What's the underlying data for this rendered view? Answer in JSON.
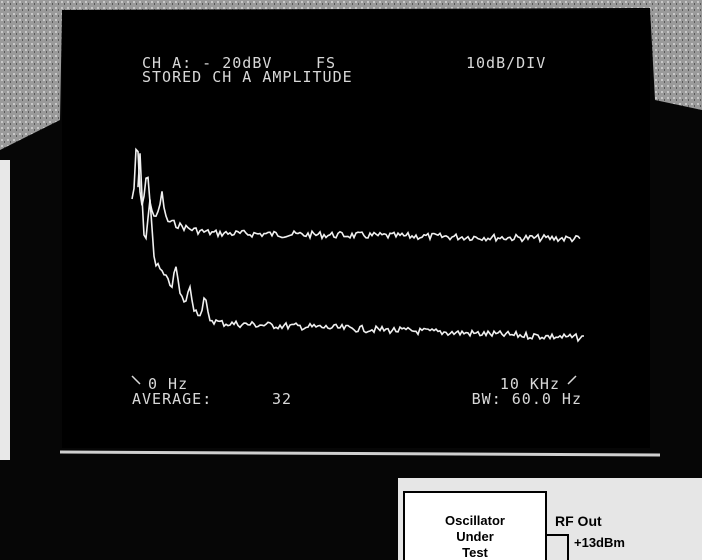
{
  "screen": {
    "header": {
      "channel": "CH A: - 20dBV",
      "scale_ref": "FS",
      "scale": "10dB/DIV",
      "mode": "STORED CH A AMPLITUDE"
    },
    "footer": {
      "start": "0 Hz",
      "stop": "10 KHz",
      "average_label": "AVERAGE:",
      "average": "32",
      "bandwidth": "BW: 60.0 Hz"
    }
  },
  "diagram": {
    "box_lines": [
      "Oscillator",
      "Under",
      "Test"
    ],
    "output_label": "RF Out",
    "output_level": "+13dBm"
  }
}
